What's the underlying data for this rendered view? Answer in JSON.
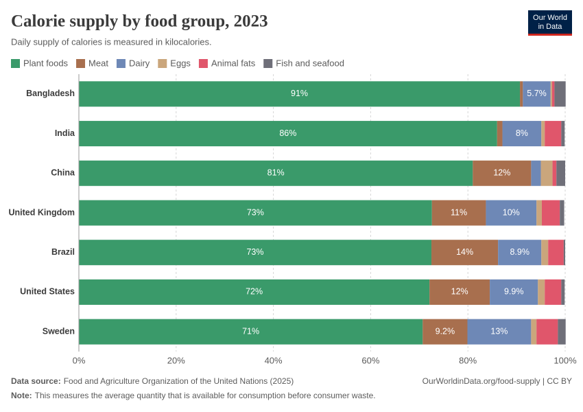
{
  "chart_data": {
    "type": "bar",
    "orientation": "horizontal",
    "stacked": true,
    "title": "Calorie supply by food group, 2023",
    "subtitle": "Daily supply of calories is measured in kilocalories.",
    "categories": [
      "Bangladesh",
      "India",
      "China",
      "United Kingdom",
      "Brazil",
      "United States",
      "Sweden"
    ],
    "series": [
      {
        "name": "Plant foods",
        "color": "#3a9a6a",
        "values": [
          90.7,
          86.0,
          81.0,
          72.6,
          72.5,
          72.1,
          70.7
        ],
        "value_labels": [
          "91%",
          "86%",
          "81%",
          "73%",
          "73%",
          "72%",
          "71%"
        ]
      },
      {
        "name": "Meat",
        "color": "#a86f4e",
        "values": [
          0.6,
          1.1,
          12.0,
          11.1,
          13.7,
          12.4,
          9.2
        ],
        "value_labels": [
          null,
          null,
          "12%",
          "11%",
          "14%",
          "12%",
          "9.2%"
        ]
      },
      {
        "name": "Dairy",
        "color": "#6e88b6",
        "values": [
          5.7,
          8.0,
          2.0,
          10.4,
          8.9,
          9.9,
          13.1
        ],
        "value_labels": [
          "5.7%",
          "8%",
          null,
          "10%",
          "8.9%",
          "9.9%",
          "13%"
        ]
      },
      {
        "name": "Eggs",
        "color": "#caa67c",
        "values": [
          0.3,
          0.7,
          2.4,
          1.1,
          1.4,
          1.4,
          1.1
        ],
        "value_labels": [
          null,
          null,
          null,
          null,
          null,
          null,
          null
        ]
      },
      {
        "name": "Animal fats",
        "color": "#e0566b",
        "values": [
          0.5,
          3.4,
          0.8,
          3.7,
          3.2,
          3.4,
          4.4
        ],
        "value_labels": [
          null,
          null,
          null,
          null,
          null,
          null,
          null
        ]
      },
      {
        "name": "Fish and seafood",
        "color": "#6f6f79",
        "values": [
          2.3,
          0.7,
          1.8,
          0.9,
          0.3,
          0.7,
          1.6
        ],
        "value_labels": [
          null,
          null,
          null,
          null,
          null,
          null,
          null
        ]
      }
    ],
    "xlim": [
      0,
      100
    ],
    "xticks": [
      {
        "value": 0,
        "label": "0%"
      },
      {
        "value": 20,
        "label": "20%"
      },
      {
        "value": 40,
        "label": "40%"
      },
      {
        "value": 60,
        "label": "60%"
      },
      {
        "value": 80,
        "label": "80%"
      },
      {
        "value": 100,
        "label": "100%"
      }
    ],
    "grid": true,
    "legend": "top"
  },
  "logo": {
    "line1": "Our World",
    "line2": "in Data"
  },
  "footer": {
    "source_label": "Data source:",
    "source": "Food and Agriculture Organization of the United Nations (2025)",
    "url": "OurWorldinData.org/food-supply | CC BY",
    "note_label": "Note:",
    "note": "This measures the average quantity that is available for consumption before consumer waste."
  }
}
